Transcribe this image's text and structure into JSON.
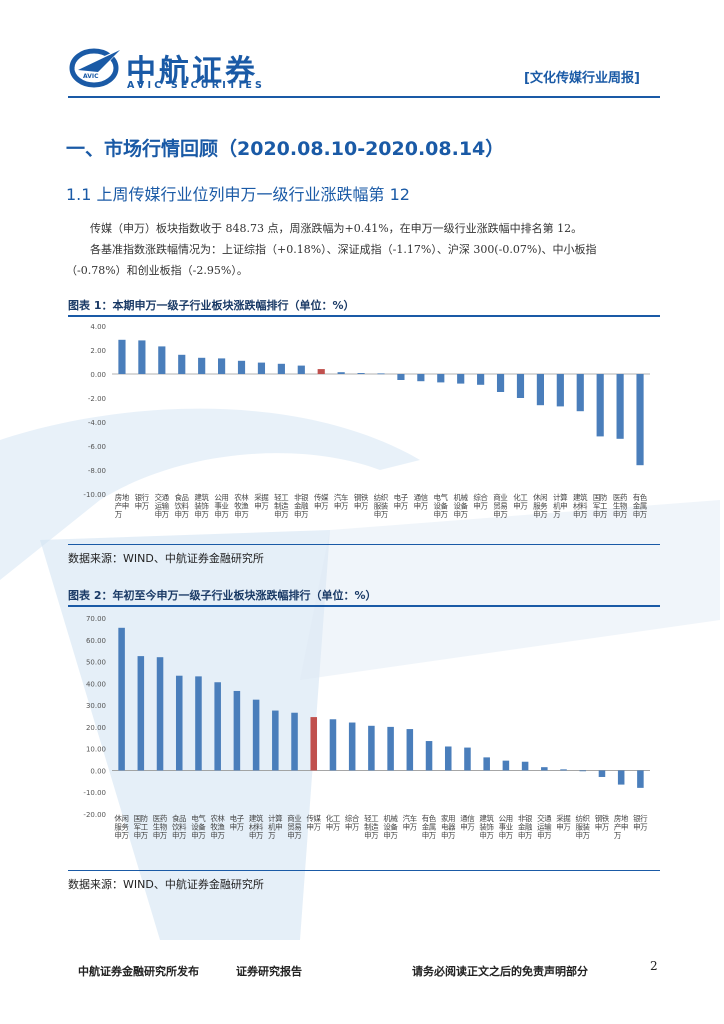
{
  "header": {
    "logo_name": "中航证券",
    "logo_sub": "AVIC SECURITIES",
    "logo_mark": "AVIC",
    "report_tag": "[文化传媒行业周报]"
  },
  "section1": {
    "title": "一、市场行情回顾（2020.08.10-2020.08.14）",
    "sub_title": "1.1 上周传媒行业位列申万一级行业涨跌幅第 12",
    "para1": "传媒（申万）板块指数收于 848.73 点，周涨跌幅为+0.41%，在申万一级行业涨跌幅中排名第 12。",
    "para2a": "各基准指数涨跌幅情况为：上证综指（+0.18%）、深证成指（-1.17%）、沪深 300(-0.07%)、中小板指",
    "para2b": "（-0.78%）和创业板指（-2.95%）。"
  },
  "figure1": {
    "title": "图表 1：本期申万一级子行业板块涨跌幅排行（单位：%）",
    "source": "数据来源：WIND、中航证券金融研究所"
  },
  "figure2": {
    "title": "图表 2：年初至今申万一级子行业板块涨跌幅排行（单位：%）",
    "source": "数据来源：WIND、中航证券金融研究所"
  },
  "footer": {
    "left": "中航证券金融研究所发布",
    "middle": "证券研究报告",
    "right": "请务必阅读正文之后的免责声明部分",
    "page": "2"
  },
  "colors": {
    "brand": "#1a5aa6",
    "bar": "#4a7ebb",
    "highlight": "#c0504d"
  },
  "chart_data": [
    {
      "type": "bar",
      "title": "",
      "categories": [
        "房地产申万",
        "银行申万",
        "交通运输申万",
        "食品饮料申万",
        "建筑装饰申万",
        "公用事业申万",
        "农林牧渔申万",
        "采掘申万",
        "轻工制造申万",
        "非银金融申万",
        "传媒申万",
        "汽车申万",
        "钢铁申万",
        "纺织服装申万",
        "电子申万",
        "通信申万",
        "电气设备申万",
        "机械设备申万",
        "综合申万",
        "商业贸易申万",
        "化工申万",
        "休闲服务申万",
        "计算机申万",
        "建筑材料申万",
        "国防军工申万",
        "医药生物申万",
        "有色金属申万"
      ],
      "values": [
        2.85,
        2.8,
        2.3,
        1.6,
        1.35,
        1.3,
        1.1,
        0.95,
        0.85,
        0.7,
        0.41,
        0.15,
        0.08,
        0.05,
        -0.5,
        -0.6,
        -0.7,
        -0.8,
        -0.9,
        -1.5,
        -2.0,
        -2.6,
        -2.7,
        -3.1,
        -5.2,
        -5.4,
        -7.6
      ],
      "highlight_index": 10,
      "ylim": [
        -10,
        4
      ],
      "yticks": [
        "4.00",
        "2.00",
        "0.00",
        "-2.00",
        "-4.00",
        "-6.00",
        "-8.00",
        "-10.00"
      ],
      "grid": false,
      "xlabel": "",
      "ylabel": ""
    },
    {
      "type": "bar",
      "title": "",
      "categories": [
        "休闲服务申万",
        "国防军工申万",
        "医药生物申万",
        "食品饮料申万",
        "电气设备申万",
        "农林牧渔申万",
        "电子申万",
        "建筑材料申万",
        "计算机申万",
        "商业贸易申万",
        "传媒申万",
        "化工申万",
        "综合申万",
        "轻工制造申万",
        "机械设备申万",
        "汽车申万",
        "有色金属申万",
        "家用电器申万",
        "通信申万",
        "建筑装饰申万",
        "公用事业申万",
        "非银金融申万",
        "交通运输申万",
        "采掘申万",
        "纺织服装申万",
        "钢铁申万",
        "房地产申万",
        "银行申万"
      ],
      "values": [
        65.5,
        52.5,
        52.0,
        43.5,
        43.2,
        40.5,
        36.5,
        32.5,
        27.5,
        26.5,
        24.5,
        23.5,
        22.0,
        20.5,
        20.0,
        19.0,
        13.5,
        11.0,
        10.5,
        6.0,
        4.5,
        4.0,
        1.5,
        0.5,
        0.0,
        -3.0,
        -6.5,
        -8.0
      ],
      "highlight_index": 10,
      "ylim": [
        -20,
        70
      ],
      "yticks": [
        "70.00",
        "60.00",
        "50.00",
        "40.00",
        "30.00",
        "20.00",
        "10.00",
        "0.00",
        "-10.00",
        "-20.00"
      ],
      "grid": false,
      "xlabel": "",
      "ylabel": ""
    }
  ]
}
